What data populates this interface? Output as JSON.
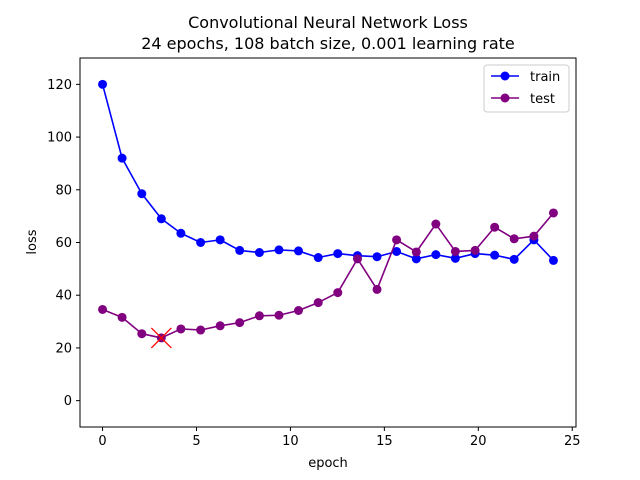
{
  "chart_data": {
    "type": "line",
    "title": "Convolutional Neural Network Loss",
    "subtitle": "24 epochs, 108 batch size, 0.001 learning rate",
    "xlabel": "epoch",
    "ylabel": "loss",
    "xlim": [
      -1.2,
      25.2
    ],
    "ylim": [
      -10,
      130
    ],
    "xticks": [
      0,
      5,
      10,
      15,
      20,
      25
    ],
    "yticks": [
      0,
      20,
      40,
      60,
      80,
      100,
      120
    ],
    "grid": false,
    "legend_position": "top-right",
    "x": [
      0,
      1.04,
      2.09,
      3.13,
      4.17,
      5.22,
      6.26,
      7.3,
      8.35,
      9.39,
      10.43,
      11.48,
      12.52,
      13.57,
      14.61,
      15.65,
      16.7,
      17.74,
      18.78,
      19.83,
      20.87,
      21.91,
      22.96,
      24
    ],
    "series": [
      {
        "name": "train",
        "color": "#0000ff",
        "values": [
          120,
          92,
          78.5,
          69,
          63.5,
          60,
          61,
          57,
          56.2,
          57.2,
          56.8,
          54.3,
          55.8,
          55,
          54.6,
          56.6,
          53.8,
          55.4,
          54,
          55.8,
          55.2,
          53.6,
          61,
          53.2
        ]
      },
      {
        "name": "test",
        "color": "#800080",
        "values": [
          34.6,
          31.6,
          25.4,
          23.8,
          27.2,
          26.8,
          28.4,
          29.6,
          32.2,
          32.4,
          34.2,
          37.2,
          41,
          53.8,
          42.2,
          61,
          56.4,
          67,
          56.6,
          57,
          65.8,
          61.4,
          62.4,
          71.2
        ]
      }
    ],
    "annotations": [
      {
        "type": "x-marker",
        "color": "#ff0000",
        "x": 3.13,
        "y": 23.8
      }
    ]
  }
}
